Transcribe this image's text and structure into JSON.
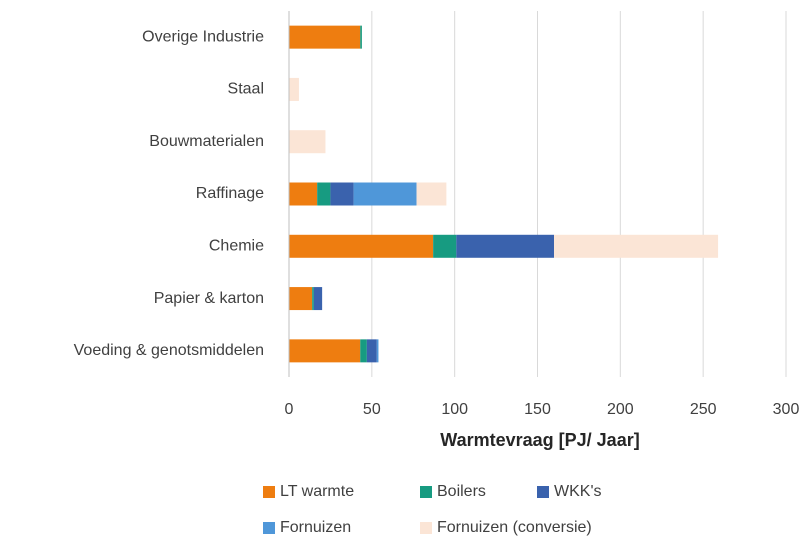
{
  "chart_data": {
    "type": "stacked-barh",
    "xlabel": "Warmtevraag  [PJ/ Jaar]",
    "categories": [
      "Overige Industrie",
      "Staal",
      "Bouwmaterialen",
      "Raffinage",
      "Chemie",
      "Papier & karton",
      "Voeding & genotsmiddelen"
    ],
    "series": [
      {
        "name": "LT warmte",
        "color": "#ee7d10",
        "values": [
          43,
          0,
          0,
          17,
          87,
          14,
          43
        ]
      },
      {
        "name": "Boilers",
        "color": "#179b81",
        "values": [
          1,
          0,
          0,
          8,
          14,
          1,
          4
        ]
      },
      {
        "name": "WKK's",
        "color": "#3a62ad",
        "values": [
          0,
          0,
          0,
          14,
          59,
          5,
          6
        ]
      },
      {
        "name": "Fornuizen",
        "color": "#4f97d9",
        "values": [
          0,
          0,
          0,
          38,
          0,
          0,
          1
        ]
      },
      {
        "name": "Fornuizen (conversie)",
        "color": "#fbe5d6",
        "values": [
          0,
          6,
          22,
          18,
          99,
          0,
          0
        ]
      }
    ],
    "xlim": [
      0,
      300
    ],
    "xticks": [
      0,
      50,
      100,
      150,
      200,
      250,
      300
    ],
    "grid": true
  }
}
